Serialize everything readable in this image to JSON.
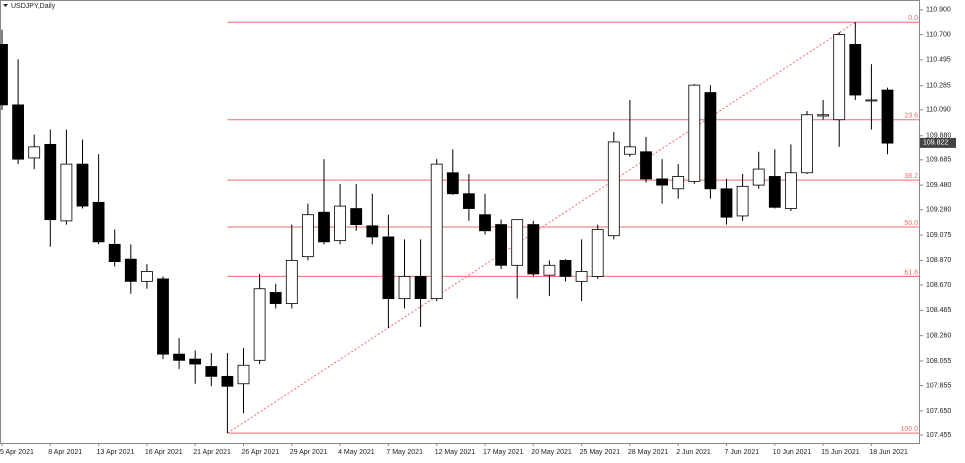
{
  "chart_data": {
    "type": "candlestick",
    "title": "USDJPY,Daily",
    "x": [
      "5 Apr 2021",
      null,
      null,
      "8 Apr 2021",
      null,
      null,
      "13 Apr 2021",
      null,
      null,
      "16 Apr 2021",
      null,
      null,
      "21 Apr 2021",
      null,
      null,
      "26 Apr 2021",
      null,
      null,
      "29 Apr 2021",
      null,
      null,
      "4 May 2021",
      null,
      null,
      "7 May 2021",
      null,
      null,
      "12 May 2021",
      null,
      null,
      "17 May 2021",
      null,
      null,
      "20 May 2021",
      null,
      null,
      "25 May 2021",
      null,
      null,
      "28 May 2021",
      null,
      null,
      "2 Jun 2021",
      null,
      null,
      "7 Jun 2021",
      null,
      null,
      "10 Jun 2021",
      null,
      null,
      "15 Jun 2021",
      null,
      null,
      "18 Jun 2021",
      null
    ],
    "open": [
      110.62,
      110.13,
      109.7,
      109.81,
      109.19,
      109.65,
      109.34,
      109.0,
      108.88,
      108.7,
      108.72,
      108.11,
      108.07,
      108.01,
      107.93,
      107.87,
      108.06,
      108.61,
      108.52,
      108.9,
      109.26,
      109.03,
      109.29,
      109.15,
      109.06,
      108.56,
      108.74,
      108.56,
      109.58,
      109.41,
      109.24,
      109.16,
      108.83,
      109.16,
      108.75,
      108.87,
      108.7,
      108.74,
      109.07,
      109.73,
      109.75,
      109.53,
      109.45,
      109.51,
      110.23,
      109.45,
      109.23,
      109.48,
      109.55,
      109.29,
      109.58,
      110.04,
      110.01,
      110.62,
      110.17,
      110.25
    ],
    "high": [
      110.74,
      110.5,
      109.89,
      109.93,
      109.93,
      109.85,
      109.73,
      109.12,
      109.0,
      108.84,
      108.74,
      108.24,
      108.14,
      108.12,
      108.12,
      108.16,
      108.76,
      108.68,
      109.16,
      109.33,
      109.69,
      109.49,
      109.49,
      109.41,
      109.24,
      109.04,
      109.04,
      109.69,
      109.77,
      109.57,
      109.41,
      109.2,
      109.2,
      109.19,
      108.87,
      108.88,
      109.04,
      109.16,
      109.91,
      110.17,
      109.87,
      109.69,
      109.65,
      110.3,
      110.29,
      109.53,
      109.57,
      109.75,
      109.77,
      109.81,
      110.08,
      110.17,
      110.72,
      110.8,
      110.46,
      110.27
    ],
    "low": [
      110.09,
      109.65,
      109.61,
      108.98,
      109.16,
      109.29,
      109.0,
      108.82,
      108.6,
      108.64,
      108.07,
      107.99,
      107.87,
      107.85,
      107.47,
      107.63,
      108.03,
      108.48,
      108.48,
      108.87,
      109.0,
      109.0,
      109.11,
      109.0,
      108.32,
      108.48,
      108.33,
      108.54,
      109.4,
      109.19,
      109.08,
      108.8,
      108.56,
      108.74,
      108.58,
      108.7,
      108.54,
      108.72,
      109.04,
      109.71,
      109.5,
      109.33,
      109.37,
      109.49,
      109.37,
      109.16,
      109.19,
      109.45,
      109.29,
      109.27,
      109.57,
      110.01,
      109.79,
      110.17,
      109.93,
      109.73
    ],
    "close": [
      110.13,
      109.69,
      109.79,
      109.2,
      109.65,
      109.31,
      109.02,
      108.86,
      108.7,
      108.78,
      108.11,
      108.06,
      108.03,
      107.93,
      107.85,
      108.02,
      108.64,
      108.52,
      108.87,
      109.24,
      109.02,
      109.31,
      109.16,
      109.06,
      108.56,
      108.74,
      108.56,
      109.65,
      109.41,
      109.29,
      109.11,
      108.83,
      109.2,
      108.76,
      108.83,
      108.74,
      108.78,
      109.12,
      109.83,
      109.79,
      109.53,
      109.48,
      109.55,
      110.29,
      109.45,
      109.22,
      109.47,
      109.61,
      109.3,
      109.58,
      110.05,
      110.05,
      110.7,
      110.21,
      110.17,
      109.82
    ],
    "up_color": "#ffffff",
    "down_color": "#000000",
    "ylim": [
      107.39,
      110.98
    ],
    "yticks": [
      {
        "value": 110.9,
        "label": "110.900"
      },
      {
        "value": 110.7,
        "label": "110.700"
      },
      110.495,
      110.285,
      {
        "value": 110.09,
        "label": "110.090"
      },
      {
        "value": 109.88,
        "label": "109.880"
      },
      109.685,
      {
        "value": 109.48,
        "label": "109.480"
      },
      {
        "value": 109.28,
        "label": "109.280"
      },
      109.075,
      {
        "value": 108.87,
        "label": "108.870"
      },
      {
        "value": 108.67,
        "label": "108.670"
      },
      108.465,
      {
        "value": 108.26,
        "label": "108.260"
      },
      108.055,
      107.855,
      {
        "value": 107.65,
        "label": "107.650"
      },
      107.455
    ],
    "last_price": 109.822,
    "fib_color": "#f26b6b",
    "fib_levels": [
      {
        "value": 110.8,
        "label": "0.0"
      },
      {
        "value": 110.01,
        "label": "23.6"
      },
      {
        "value": 109.52,
        "label": "38.2"
      },
      {
        "value": 109.14,
        "label": "50.0"
      },
      {
        "value": 108.74,
        "label": "61.8"
      },
      {
        "value": 107.47,
        "label": "100.0"
      }
    ]
  }
}
